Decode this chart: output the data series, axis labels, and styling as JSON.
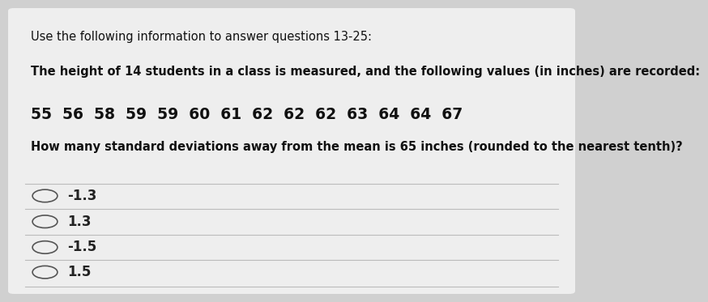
{
  "bg_color": "#d0d0d0",
  "card_color": "#eeeeee",
  "header_line1": "Use the following information to answer questions 13-25:",
  "header_line2": "The height of 14 students in a class is measured, and the following values (in inches) are recorded:",
  "data_line": "55  56  58  59  59  60  61  62  62  62  63  64  64  67",
  "question": "How many standard deviations away from the mean is 65 inches (rounded to the nearest tenth)?",
  "options": [
    "-1.3",
    "1.3",
    "-1.5",
    "1.5"
  ],
  "divider_color": "#bbbbbb",
  "text_color": "#111111",
  "option_text_color": "#222222",
  "font_size_header": 10.5,
  "font_size_data": 13.5,
  "font_size_question": 10.5,
  "font_size_option": 12
}
